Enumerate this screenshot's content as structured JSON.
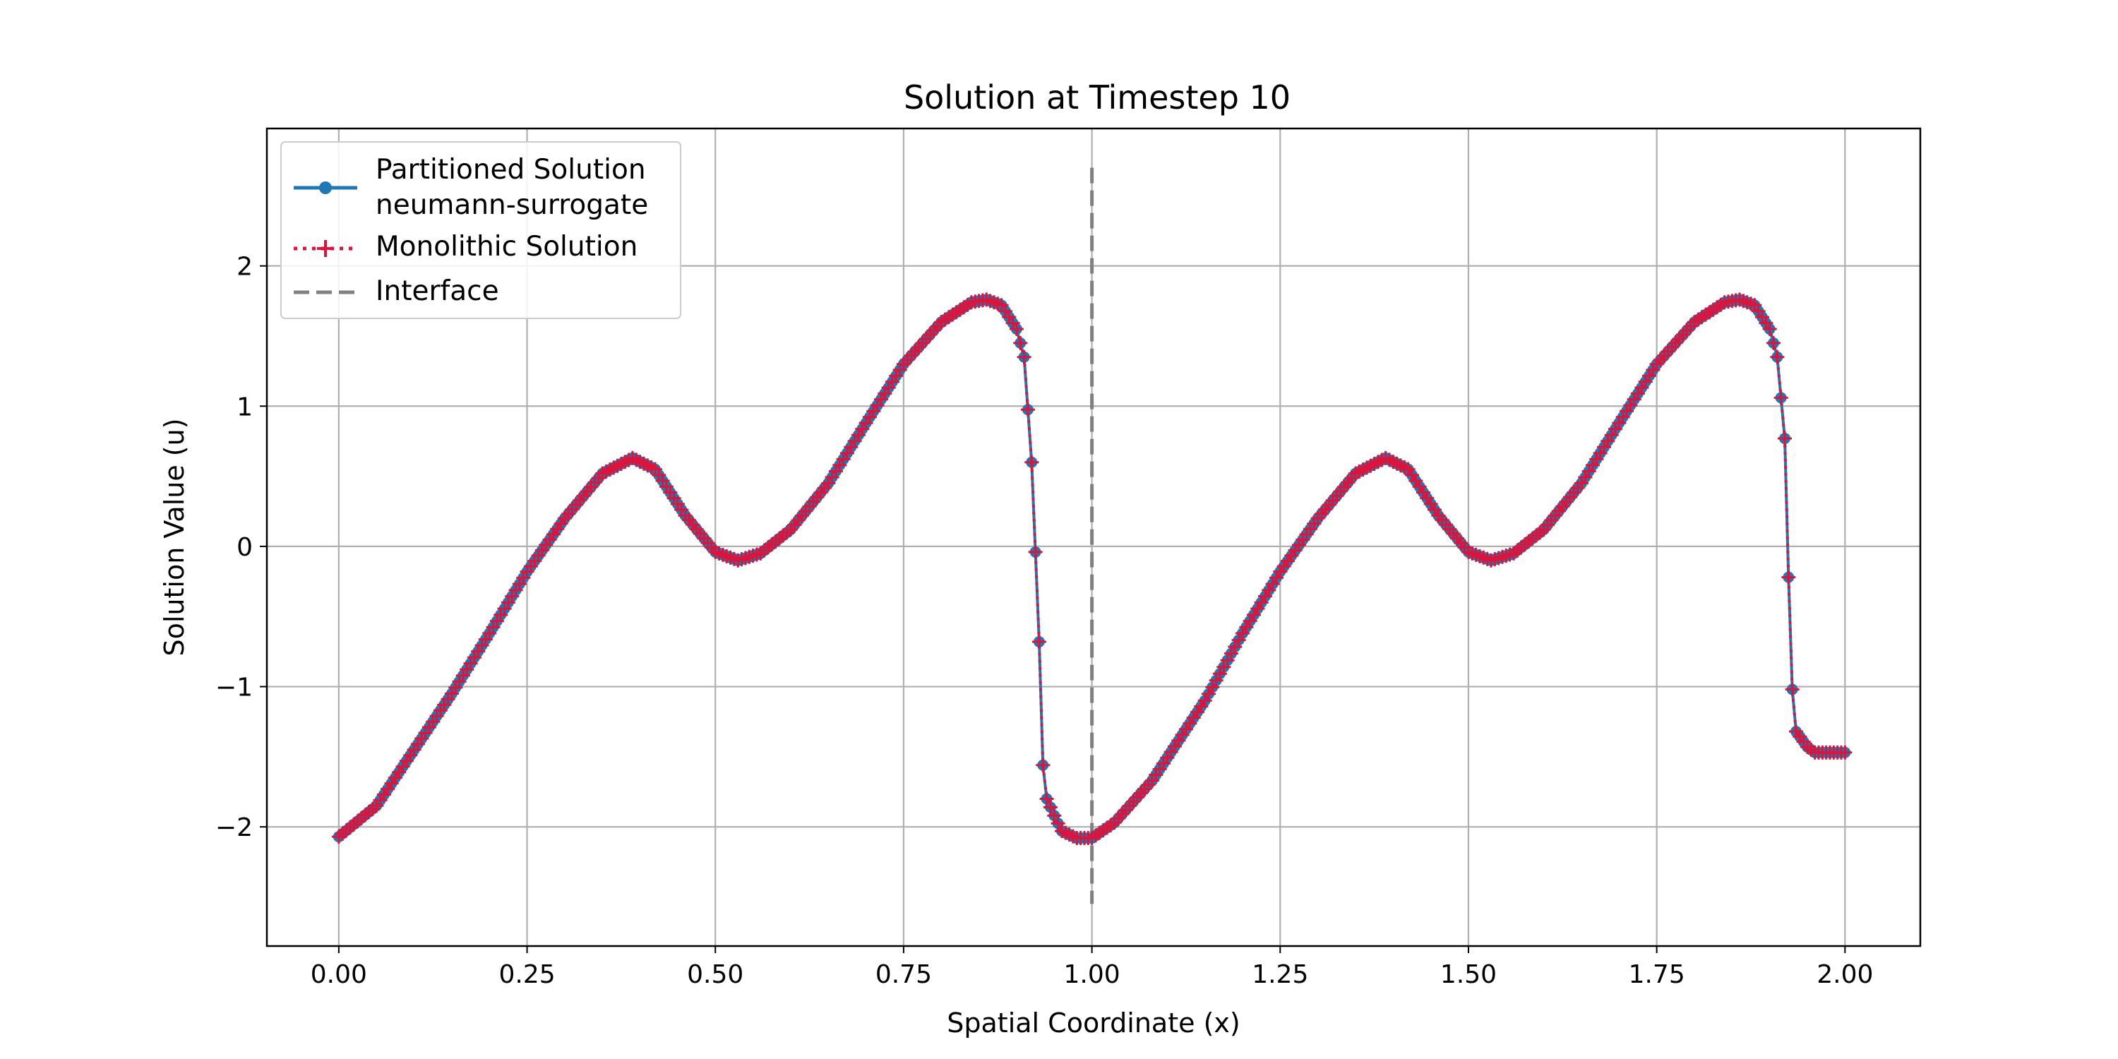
{
  "chart_data": {
    "type": "line",
    "title": "Solution at Timestep 10",
    "xlabel": "Spatial Coordinate (x)",
    "ylabel": "Solution Value (u)",
    "xlim": [
      -0.0955,
      2.1
    ],
    "ylim": [
      -2.85,
      2.98
    ],
    "xticks": [
      0.0,
      0.25,
      0.5,
      0.75,
      1.0,
      1.25,
      1.5,
      1.75,
      2.0
    ],
    "xtick_labels": [
      "0.00",
      "0.25",
      "0.50",
      "0.75",
      "1.00",
      "1.25",
      "1.50",
      "1.75",
      "2.00"
    ],
    "yticks": [
      -2,
      -1,
      0,
      1,
      2
    ],
    "ytick_labels": [
      "−2",
      "−1",
      "0",
      "1",
      "2"
    ],
    "grid": true,
    "legend_position": "top-left",
    "series": [
      {
        "name": "Partitioned Solution\nneumann-surrogate",
        "color": "#1f77b4",
        "style": "solid line with circle markers",
        "knots": [
          [
            0.0,
            -2.07
          ],
          [
            0.05,
            -1.85
          ],
          [
            0.1,
            -1.45
          ],
          [
            0.15,
            -1.05
          ],
          [
            0.2,
            -0.62
          ],
          [
            0.25,
            -0.18
          ],
          [
            0.3,
            0.2
          ],
          [
            0.35,
            0.52
          ],
          [
            0.39,
            0.63
          ],
          [
            0.42,
            0.55
          ],
          [
            0.46,
            0.22
          ],
          [
            0.5,
            -0.04
          ],
          [
            0.53,
            -0.1
          ],
          [
            0.56,
            -0.05
          ],
          [
            0.6,
            0.12
          ],
          [
            0.65,
            0.45
          ],
          [
            0.7,
            0.88
          ],
          [
            0.75,
            1.3
          ],
          [
            0.8,
            1.6
          ],
          [
            0.84,
            1.74
          ],
          [
            0.86,
            1.76
          ],
          [
            0.88,
            1.72
          ],
          [
            0.9,
            1.55
          ],
          [
            0.91,
            1.35
          ],
          [
            0.92,
            0.6
          ],
          [
            0.93,
            -0.68
          ],
          [
            0.935,
            -1.56
          ],
          [
            0.94,
            -1.8
          ],
          [
            0.95,
            -1.92
          ],
          [
            0.96,
            -2.03
          ],
          [
            0.98,
            -2.08
          ],
          [
            1.0,
            -2.08
          ],
          [
            1.03,
            -1.97
          ],
          [
            1.08,
            -1.67
          ],
          [
            1.15,
            -1.1
          ],
          [
            1.2,
            -0.62
          ],
          [
            1.25,
            -0.18
          ],
          [
            1.3,
            0.2
          ],
          [
            1.35,
            0.52
          ],
          [
            1.39,
            0.63
          ],
          [
            1.42,
            0.55
          ],
          [
            1.46,
            0.22
          ],
          [
            1.5,
            -0.04
          ],
          [
            1.53,
            -0.1
          ],
          [
            1.56,
            -0.05
          ],
          [
            1.6,
            0.12
          ],
          [
            1.65,
            0.45
          ],
          [
            1.7,
            0.88
          ],
          [
            1.75,
            1.3
          ],
          [
            1.8,
            1.6
          ],
          [
            1.84,
            1.74
          ],
          [
            1.86,
            1.76
          ],
          [
            1.88,
            1.72
          ],
          [
            1.9,
            1.55
          ],
          [
            1.91,
            1.35
          ],
          [
            1.92,
            0.77
          ],
          [
            1.925,
            -0.22
          ],
          [
            1.93,
            -1.02
          ],
          [
            1.935,
            -1.32
          ],
          [
            1.95,
            -1.43
          ],
          [
            1.96,
            -1.47
          ],
          [
            2.0,
            -1.47
          ]
        ]
      },
      {
        "name": "Monolithic Solution",
        "color": "#dc143c",
        "style": "dotted line with plus markers"
      },
      {
        "name": "Interface",
        "color": "#808080",
        "style": "dashed vertical line",
        "x": 1.0,
        "y_range": [
          -2.55,
          2.7
        ]
      }
    ]
  }
}
